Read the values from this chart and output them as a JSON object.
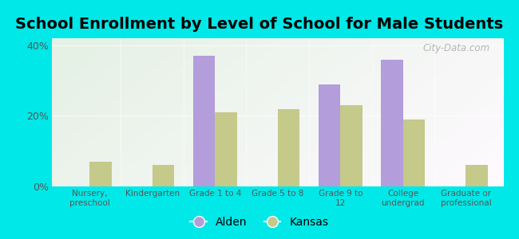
{
  "title": "School Enrollment by Level of School for Male Students",
  "categories": [
    "Nursery,\npreschool",
    "Kindergarten",
    "Grade 1 to 4",
    "Grade 5 to 8",
    "Grade 9 to\n12",
    "College\nundergrad",
    "Graduate or\nprofessional"
  ],
  "alden": [
    0,
    0,
    37,
    0,
    29,
    36,
    0
  ],
  "kansas": [
    7,
    6,
    21,
    22,
    23,
    19,
    6
  ],
  "alden_color": "#b39ddb",
  "kansas_color": "#c5c98a",
  "background_color": "#00e8e8",
  "ylim": [
    0,
    42
  ],
  "yticks": [
    0,
    20,
    40
  ],
  "ytick_labels": [
    "0%",
    "20%",
    "40%"
  ],
  "bar_width": 0.35,
  "title_fontsize": 14,
  "legend_labels": [
    "Alden",
    "Kansas"
  ],
  "watermark": "City-Data.com"
}
